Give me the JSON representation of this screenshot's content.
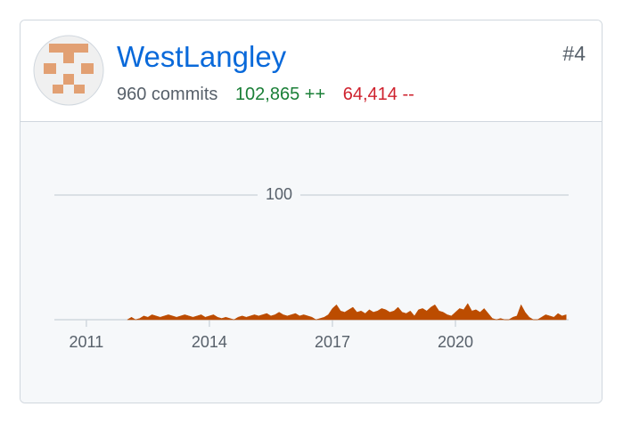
{
  "header": {
    "name": "WestLangley",
    "commits": "960 commits",
    "additions": "102,865 ++",
    "deletions": "64,414 --",
    "rank": "#4"
  },
  "chart_data": {
    "type": "area",
    "x": [
      2012.0,
      2012.1,
      2012.2,
      2012.3,
      2012.4,
      2012.5,
      2012.6,
      2012.7,
      2012.8,
      2012.9,
      2013.0,
      2013.1,
      2013.2,
      2013.3,
      2013.4,
      2013.5,
      2013.6,
      2013.7,
      2013.8,
      2013.9,
      2014.0,
      2014.1,
      2014.2,
      2014.3,
      2014.4,
      2014.5,
      2014.6,
      2014.7,
      2014.8,
      2014.9,
      2015.0,
      2015.1,
      2015.2,
      2015.3,
      2015.4,
      2015.5,
      2015.6,
      2015.7,
      2015.8,
      2015.9,
      2016.0,
      2016.1,
      2016.2,
      2016.3,
      2016.4,
      2016.5,
      2016.6,
      2016.7,
      2016.8,
      2016.9,
      2017.0,
      2017.1,
      2017.2,
      2017.3,
      2017.4,
      2017.5,
      2017.6,
      2017.7,
      2017.8,
      2017.9,
      2018.0,
      2018.1,
      2018.2,
      2018.3,
      2018.4,
      2018.5,
      2018.6,
      2018.7,
      2018.8,
      2018.9,
      2019.0,
      2019.1,
      2019.2,
      2019.3,
      2019.4,
      2019.5,
      2019.6,
      2019.7,
      2019.8,
      2019.9,
      2020.0,
      2020.1,
      2020.2,
      2020.3,
      2020.4,
      2020.5,
      2020.6,
      2020.7,
      2020.8,
      2020.9,
      2021.0,
      2021.1,
      2021.2,
      2021.3,
      2021.4,
      2021.5,
      2021.6,
      2021.7,
      2021.8,
      2021.9,
      2022.0,
      2022.1,
      2022.2,
      2022.3,
      2022.4,
      2022.5,
      2022.6,
      2022.7
    ],
    "series": [
      {
        "color": "#bc4c00",
        "values": [
          0,
          2,
          0,
          1,
          3,
          2,
          4,
          3,
          2,
          3,
          4,
          3,
          2,
          3,
          4,
          3,
          2,
          3,
          4,
          2,
          3,
          4,
          2,
          1,
          2,
          1,
          0,
          2,
          3,
          2,
          3,
          4,
          3,
          4,
          5,
          3,
          4,
          6,
          4,
          3,
          4,
          5,
          3,
          4,
          3,
          2,
          0,
          1,
          2,
          4,
          9,
          12,
          7,
          6,
          8,
          10,
          6,
          7,
          5,
          8,
          6,
          7,
          9,
          8,
          6,
          7,
          10,
          6,
          5,
          7,
          3,
          8,
          9,
          7,
          10,
          12,
          7,
          6,
          4,
          3,
          6,
          9,
          8,
          13,
          7,
          8,
          6,
          9,
          5,
          1,
          0,
          1,
          0,
          0,
          2,
          3,
          12,
          6,
          2,
          0,
          0,
          2,
          4,
          3,
          2,
          5,
          3,
          4
        ]
      }
    ],
    "xlim": [
      2010.22,
      2022.76
    ],
    "xticks": [
      2011,
      2014,
      2017,
      2020
    ],
    "ylim": [
      0,
      100
    ],
    "yticks": [
      100
    ],
    "grid": true
  }
}
